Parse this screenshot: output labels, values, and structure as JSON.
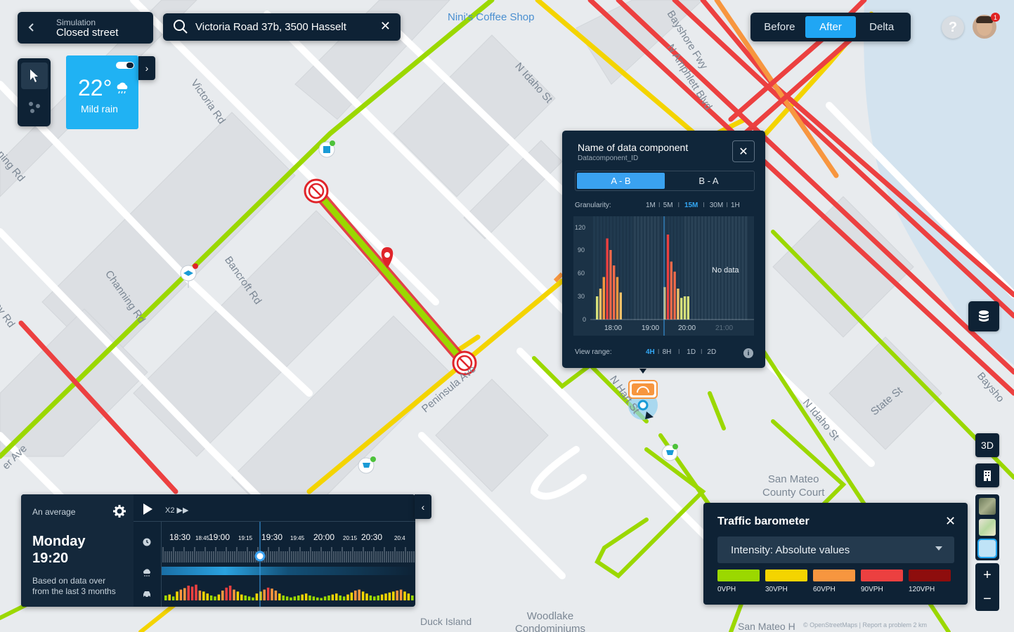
{
  "simulation": {
    "label": "Simulation",
    "name": "Closed street"
  },
  "search": {
    "value": "Victoria Road 37b, 3500 Hasselt"
  },
  "weather": {
    "temperature": "22°",
    "description": "Mild rain"
  },
  "compare": {
    "options": [
      "Before",
      "After",
      "Delta"
    ],
    "active": "After"
  },
  "user": {
    "notifications": "1"
  },
  "data_component": {
    "title": "Name of data component",
    "id": "Datacomponent_ID",
    "directions": [
      "A - B",
      "B - A"
    ],
    "active_direction": "A - B",
    "granularity_label": "Granularity:",
    "granularity_options": [
      "1M",
      "5M",
      "15M",
      "30M",
      "1H"
    ],
    "granularity_active": "15M",
    "view_range_label": "View range:",
    "view_range_options": [
      "4H",
      "8H",
      "1D",
      "2D"
    ],
    "view_range_active": "4H",
    "no_data": "No data",
    "chart": {
      "y_ticks": [
        "120",
        "90",
        "60",
        "30",
        "0"
      ],
      "x_ticks": [
        "18:00",
        "19:00",
        "20:00",
        "21:00"
      ]
    }
  },
  "map_labels": {
    "coffee": "Nini's Coffee Shop",
    "victoria": "Victoria Rd",
    "idaho1": "N Idaho St",
    "bayshore": "Bayshore Fwy",
    "amphlett": "N Amphlett Blvd",
    "channing1": "nning Rd",
    "bancroft": "Bancroft Rd",
    "channing2": "Channing Rd",
    "ley": "ley Rd",
    "ave": "er Ave",
    "peninsula": "Peninsula Ave",
    "idaho2": "N Idaho St",
    "state": "State St",
    "bayshore2": "Baysho",
    "sanmateo": "San Mateo\nCounty Court",
    "duck": "Duck Island",
    "woodlake": "Woodlake\nCondominiums",
    "sanmateo2": "San Mateo H",
    "nhart": "N Hart St"
  },
  "right_controls": {
    "three_d": "3D",
    "zoom_in": "+",
    "zoom_out": "−"
  },
  "barometer": {
    "title": "Traffic barometer",
    "select": "Intensity: Absolute values",
    "legend": [
      {
        "label": "0VPH",
        "color": "#9bd800"
      },
      {
        "label": "30VPH",
        "color": "#f4d400"
      },
      {
        "label": "60VPH",
        "color": "#f7963f"
      },
      {
        "label": "90VPH",
        "color": "#ec4040"
      },
      {
        "label": "120VPH",
        "color": "#8e0d0d"
      }
    ]
  },
  "timeline": {
    "mode": "An average",
    "day": "Monday",
    "time": "19:20",
    "note_line1": "Based on data over",
    "note_line2": "from the last 3 months",
    "speed": "X2 ▶▶",
    "ticks": [
      "18:30",
      "18:45",
      "19:00",
      "19:15",
      "19:30",
      "19:45",
      "20:00",
      "20:15",
      "20:30",
      "20:4"
    ]
  },
  "attribution": "© OpenStreetMaps   |   Report a problem        2 km"
}
